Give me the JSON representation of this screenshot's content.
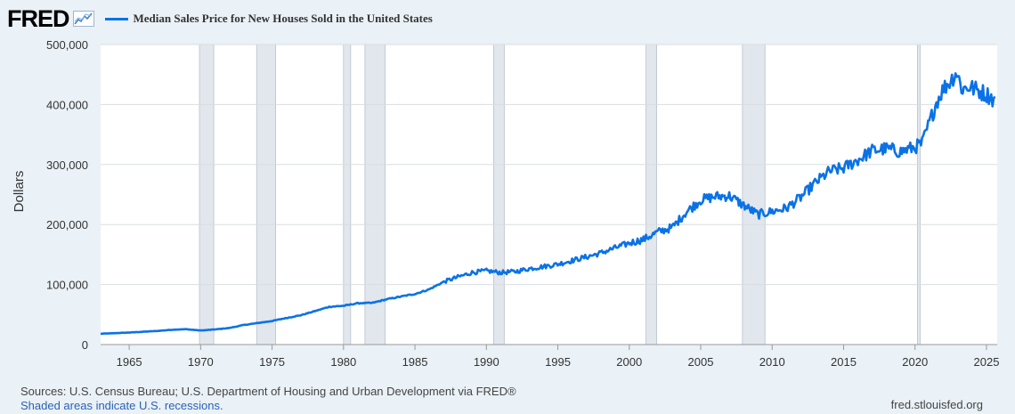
{
  "header": {
    "logo": "FRED",
    "logo_icon": "trend-line-icon",
    "series_title": "Median Sales Price for New Houses Sold in the United States"
  },
  "footer": {
    "sources": "Sources: U.S. Census Bureau; U.S. Department of Housing and Urban Development via FRED®",
    "note": "Shaded areas indicate U.S. recessions.",
    "site": "fred.stlouisfed.org"
  },
  "colors": {
    "line": "#0a72e6",
    "recession": "#e1e7ed",
    "plot_bg": "#ffffff",
    "grid": "#d9dde2"
  },
  "chart_data": {
    "type": "line",
    "title": "Median Sales Price for New Houses Sold in the United States",
    "xlabel": "",
    "ylabel": "Dollars",
    "xlim": [
      1963.0,
      2025.75
    ],
    "ylim": [
      0,
      500000
    ],
    "x_ticks": [
      1965,
      1970,
      1975,
      1980,
      1985,
      1990,
      1995,
      2000,
      2005,
      2010,
      2015,
      2020,
      2025
    ],
    "x_tick_labels": [
      "1965",
      "1970",
      "1975",
      "1980",
      "1985",
      "1990",
      "1995",
      "2000",
      "2005",
      "2010",
      "2015",
      "2020",
      "2025"
    ],
    "y_ticks": [
      0,
      100000,
      200000,
      300000,
      400000,
      500000
    ],
    "y_tick_labels": [
      "0",
      "100,000",
      "200,000",
      "300,000",
      "400,000",
      "500,000"
    ],
    "grid": true,
    "recessions": [
      [
        1969.92,
        1970.92
      ],
      [
        1973.92,
        1975.25
      ],
      [
        1980.0,
        1980.5
      ],
      [
        1981.5,
        1982.92
      ],
      [
        1990.5,
        1991.25
      ],
      [
        2001.17,
        2001.92
      ],
      [
        2007.92,
        2009.5
      ],
      [
        2020.17,
        2020.33
      ]
    ],
    "series": [
      {
        "name": "Median Sales Price for New Houses Sold in the United States",
        "x": [
          1963.0,
          1964.0,
          1965.0,
          1966.0,
          1967.0,
          1968.0,
          1969.0,
          1970.0,
          1971.0,
          1972.0,
          1973.0,
          1974.0,
          1975.0,
          1976.0,
          1977.0,
          1978.0,
          1979.0,
          1980.0,
          1981.0,
          1982.0,
          1983.0,
          1984.0,
          1985.0,
          1986.0,
          1987.0,
          1988.0,
          1989.0,
          1990.0,
          1991.0,
          1992.0,
          1993.0,
          1994.0,
          1995.0,
          1996.0,
          1997.0,
          1998.0,
          1999.0,
          2000.0,
          2001.0,
          2002.0,
          2003.0,
          2004.0,
          2005.0,
          2006.0,
          2007.0,
          2008.0,
          2009.0,
          2010.0,
          2011.0,
          2012.0,
          2013.0,
          2014.0,
          2015.0,
          2016.0,
          2017.0,
          2018.0,
          2019.0,
          2020.0,
          2020.5,
          2021.0,
          2021.5,
          2022.0,
          2022.5,
          2022.9,
          2023.3,
          2023.75,
          2024.25,
          2024.75,
          2025.25,
          2025.6
        ],
        "values": [
          18000,
          19000,
          20000,
          21400,
          22700,
          24700,
          25600,
          23400,
          25200,
          27600,
          32500,
          35900,
          39300,
          44200,
          48800,
          55700,
          62900,
          64600,
          68900,
          69300,
          75300,
          79900,
          84300,
          92000,
          104500,
          112500,
          120000,
          122900,
          120000,
          121500,
          126500,
          130000,
          133900,
          140000,
          146000,
          152500,
          161000,
          169000,
          175200,
          187600,
          195000,
          221000,
          240900,
          246500,
          247900,
          232100,
          216700,
          221800,
          227200,
          245200,
          268900,
          288500,
          294200,
          307800,
          323100,
          326400,
          321500,
          329000,
          335000,
          369000,
          404000,
          427000,
          440000,
          455000,
          425000,
          430000,
          425000,
          420000,
          414000,
          405000
        ]
      }
    ]
  }
}
